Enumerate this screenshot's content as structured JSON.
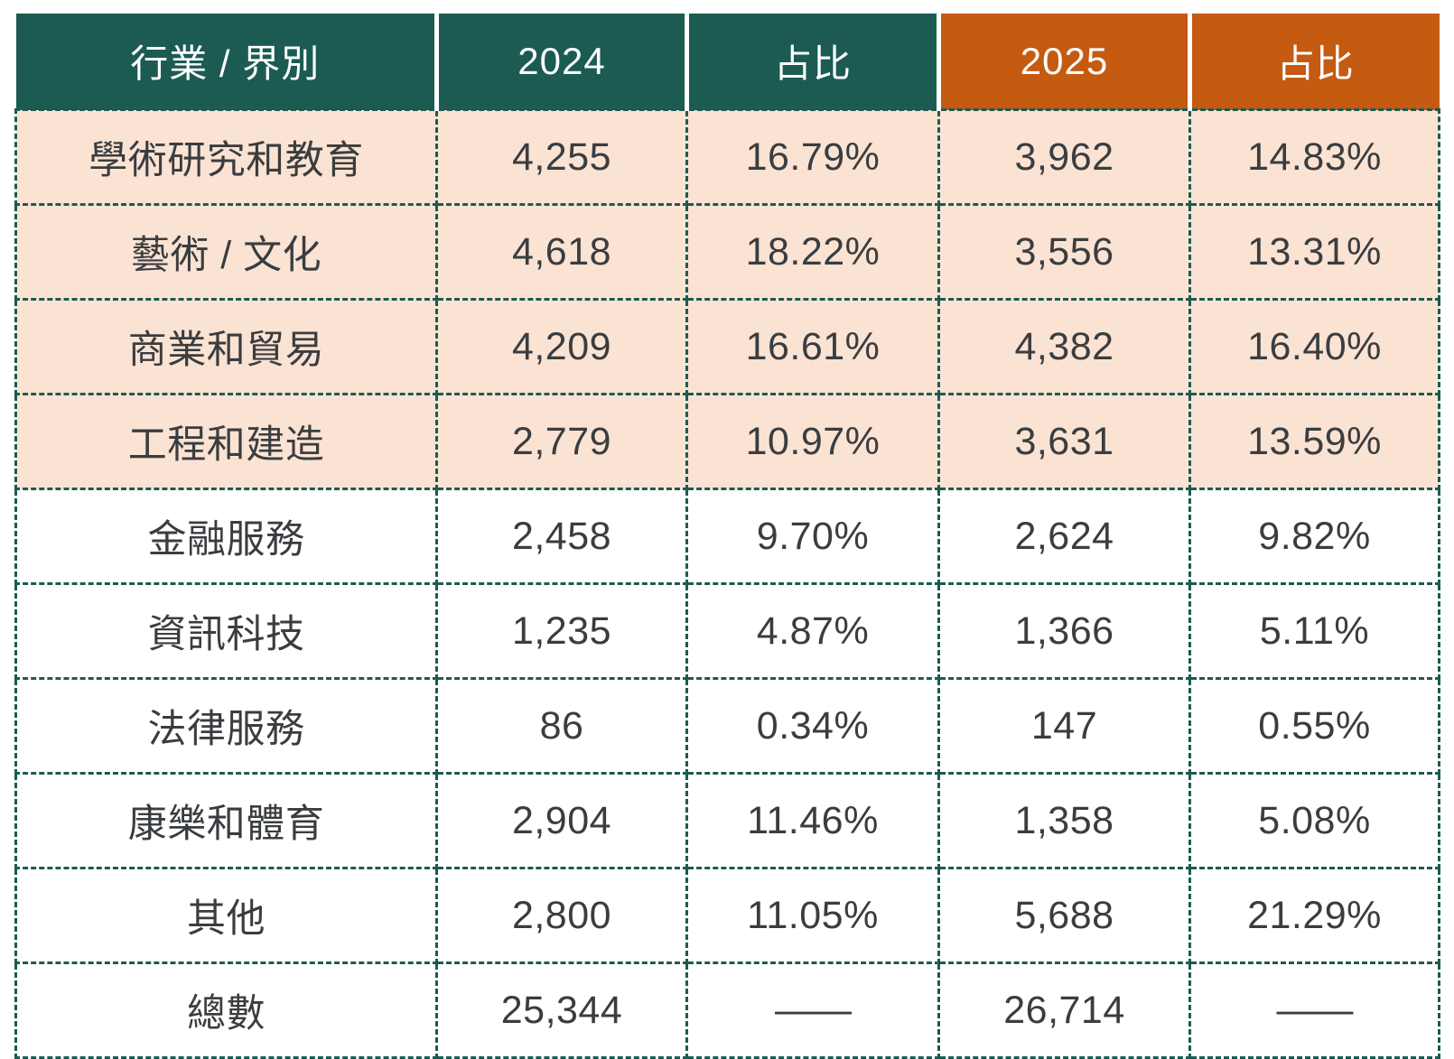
{
  "table": {
    "header": [
      "行業 / 界別",
      "2024",
      "占比",
      "2025",
      "占比"
    ],
    "rows": [
      [
        "學術研究和教育",
        "4,255",
        "16.79%",
        "3,962",
        "14.83%"
      ],
      [
        "藝術 / 文化",
        "4,618",
        "18.22%",
        "3,556",
        "13.31%"
      ],
      [
        "商業和貿易",
        "4,209",
        "16.61%",
        "4,382",
        "16.40%"
      ],
      [
        "工程和建造",
        "2,779",
        "10.97%",
        "3,631",
        "13.59%"
      ],
      [
        "金融服務",
        "2,458",
        "9.70%",
        "2,624",
        "9.82%"
      ],
      [
        "資訊科技",
        "1,235",
        "4.87%",
        "1,366",
        "5.11%"
      ],
      [
        "法律服務",
        "86",
        "0.34%",
        "147",
        "0.55%"
      ],
      [
        "康樂和體育",
        "2,904",
        "11.46%",
        "1,358",
        "5.08%"
      ],
      [
        "其他",
        "2,800",
        "11.05%",
        "5,688",
        "21.29%"
      ],
      [
        "總數",
        "25,344",
        "——",
        "26,714",
        "——"
      ]
    ],
    "colors": {
      "teal_header": "#1B5B52",
      "orange_header": "#C55A11",
      "highlight_row": "#FBE3D3",
      "grid_border": "#1B5B52",
      "body_text": "#3A3D40",
      "header_text": "#FFFFFF"
    }
  },
  "chart_data": {
    "type": "table",
    "title": "",
    "columns": [
      "行業 / 界別",
      "2024",
      "占比",
      "2025",
      "占比"
    ],
    "rows": [
      {
        "sector": "學術研究和教育",
        "count_2024": 4255,
        "share_2024": "16.79%",
        "count_2025": 3962,
        "share_2025": "14.83%"
      },
      {
        "sector": "藝術 / 文化",
        "count_2024": 4618,
        "share_2024": "18.22%",
        "count_2025": 3556,
        "share_2025": "13.31%"
      },
      {
        "sector": "商業和貿易",
        "count_2024": 4209,
        "share_2024": "16.61%",
        "count_2025": 4382,
        "share_2025": "16.40%"
      },
      {
        "sector": "工程和建造",
        "count_2024": 2779,
        "share_2024": "10.97%",
        "count_2025": 3631,
        "share_2025": "13.59%"
      },
      {
        "sector": "金融服務",
        "count_2024": 2458,
        "share_2024": "9.70%",
        "count_2025": 2624,
        "share_2025": "9.82%"
      },
      {
        "sector": "資訊科技",
        "count_2024": 1235,
        "share_2024": "4.87%",
        "count_2025": 1366,
        "share_2025": "5.11%"
      },
      {
        "sector": "法律服務",
        "count_2024": 86,
        "share_2024": "0.34%",
        "count_2025": 147,
        "share_2025": "0.55%"
      },
      {
        "sector": "康樂和體育",
        "count_2024": 2904,
        "share_2024": "11.46%",
        "count_2025": 1358,
        "share_2025": "5.08%"
      },
      {
        "sector": "其他",
        "count_2024": 2800,
        "share_2024": "11.05%",
        "count_2025": 5688,
        "share_2025": "21.29%"
      },
      {
        "sector": "總數",
        "count_2024": 25344,
        "share_2024": "——",
        "count_2025": 26714,
        "share_2025": "——"
      }
    ],
    "layout_hints": {
      "highlighted_rows": [
        0,
        1,
        2,
        3
      ],
      "header_fill_cols_0_2": "#1B5B52",
      "header_fill_cols_3_4": "#C55A11",
      "grid": "dashed"
    }
  }
}
